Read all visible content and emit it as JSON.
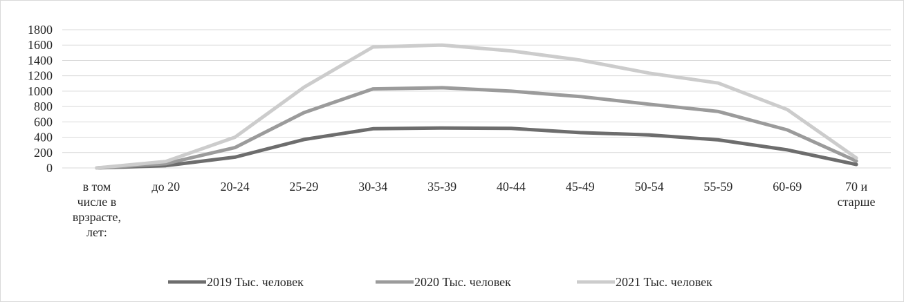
{
  "chart_data": {
    "type": "line",
    "title": "",
    "xlabel": "",
    "ylabel": "",
    "ylim": [
      0,
      1800
    ],
    "yticks": [
      0,
      200,
      400,
      600,
      800,
      1000,
      1200,
      1400,
      1600,
      1800
    ],
    "grid": true,
    "legend_position": "bottom",
    "categories": [
      [
        "в том",
        "числе в",
        "врзрасте,",
        "лет:"
      ],
      [
        "до 20"
      ],
      [
        "20-24"
      ],
      [
        "25-29"
      ],
      [
        "30-34"
      ],
      [
        "35-39"
      ],
      [
        "40-44"
      ],
      [
        "45-49"
      ],
      [
        "50-54"
      ],
      [
        "55-59"
      ],
      [
        "60-69"
      ],
      [
        "70 и",
        "старше"
      ]
    ],
    "series": [
      {
        "name": "2019 Тыс. человек",
        "color": "#6d6d6d",
        "values": [
          0,
          30,
          140,
          370,
          510,
          520,
          515,
          460,
          430,
          365,
          235,
          45
        ]
      },
      {
        "name": "2020 Тыс. человек",
        "color": "#9b9b9b",
        "values": [
          0,
          55,
          265,
          720,
          1030,
          1045,
          1000,
          930,
          830,
          735,
          495,
          90
        ]
      },
      {
        "name": "2021 Тыс. человек",
        "color": "#cccccc",
        "values": [
          0,
          85,
          400,
          1050,
          1575,
          1600,
          1525,
          1405,
          1235,
          1105,
          760,
          130
        ]
      }
    ]
  }
}
